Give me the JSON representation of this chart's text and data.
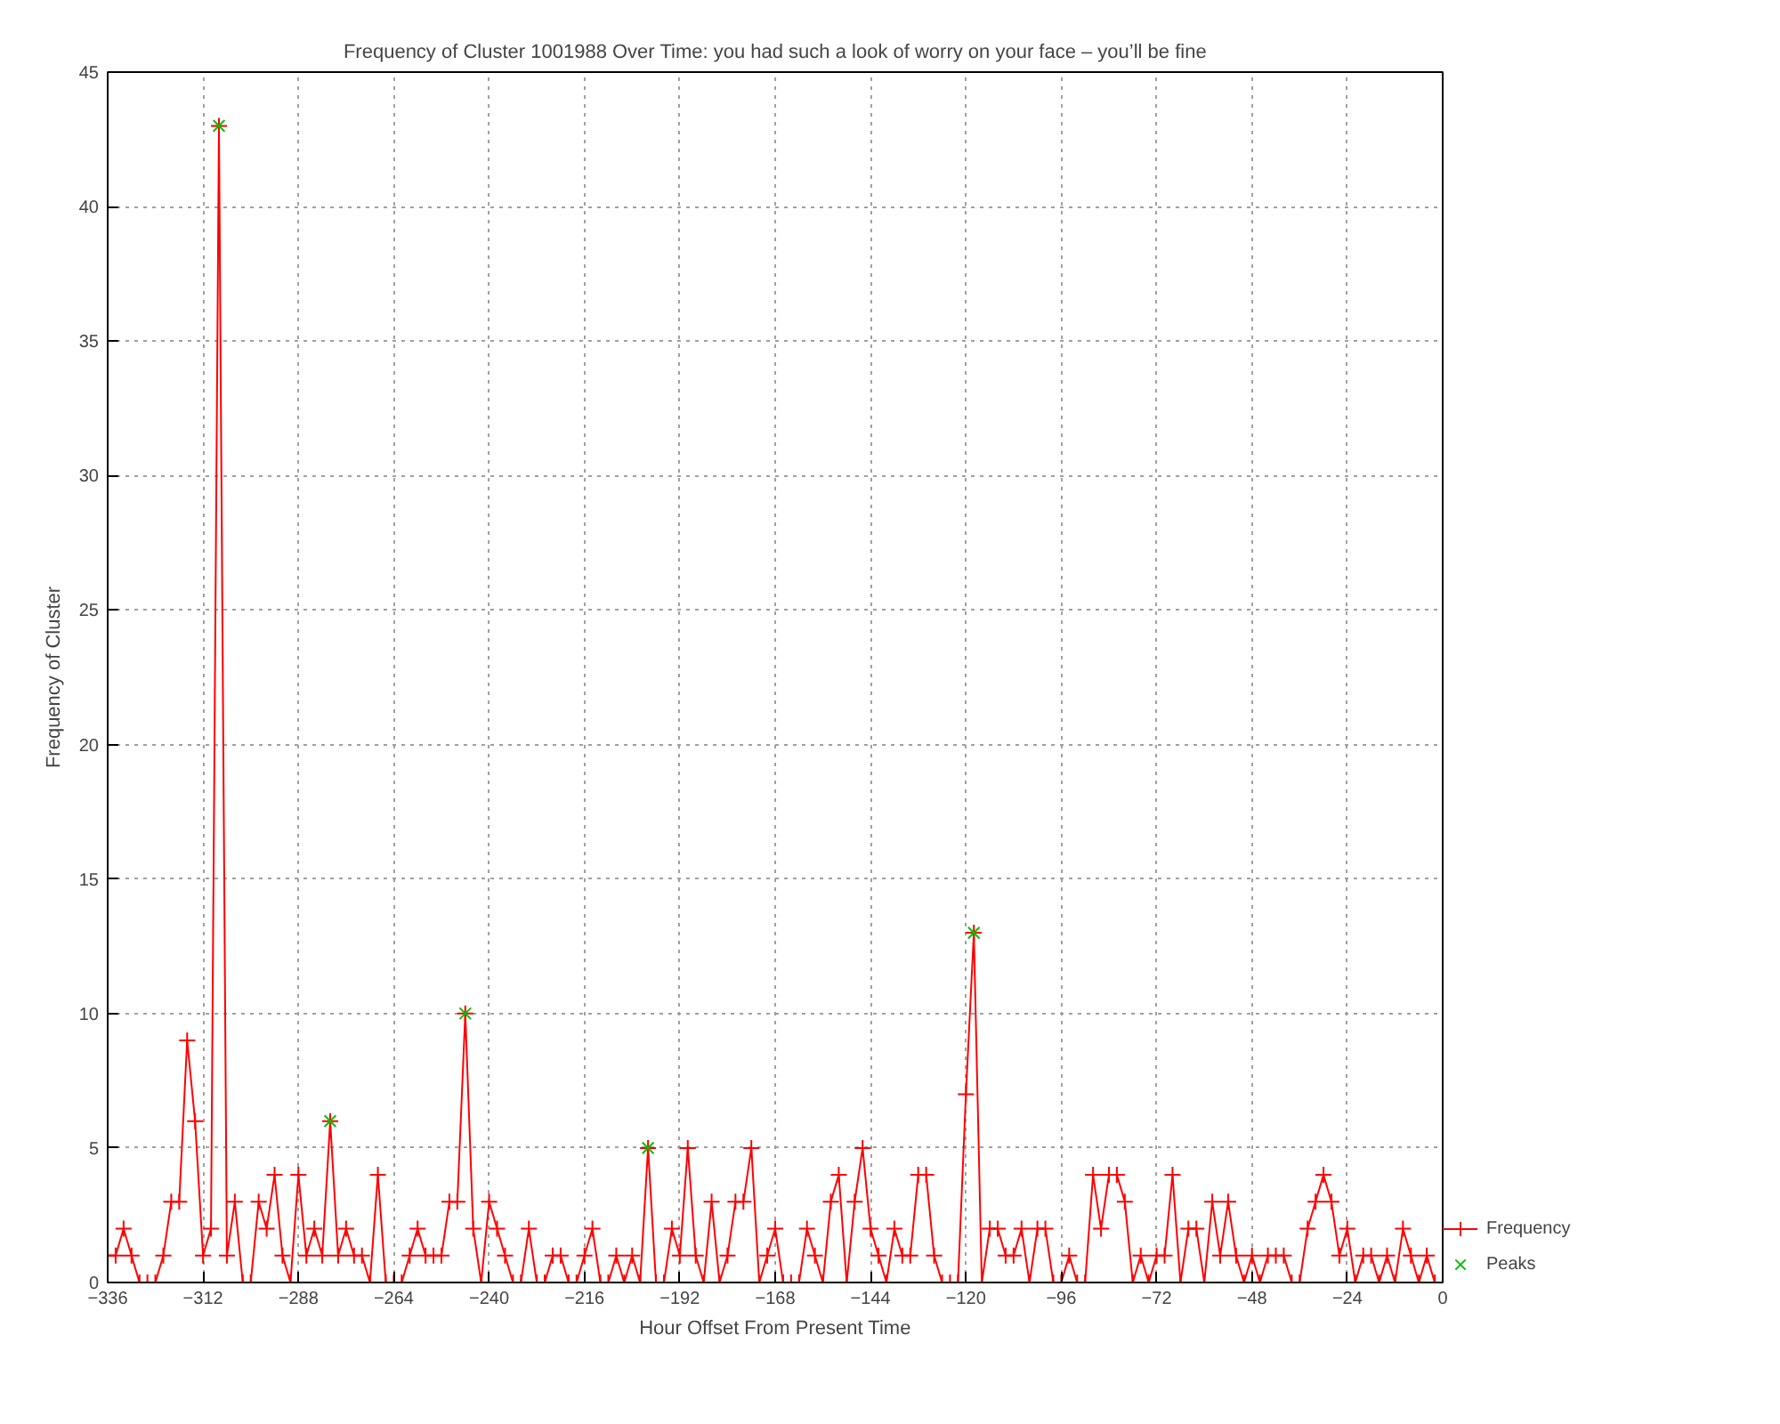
{
  "chart_data": {
    "type": "line",
    "title": "Frequency of Cluster 1001988 Over Time: you had such a look of worry on your face – you’ll be fine",
    "xlabel": "Hour Offset From Present Time",
    "ylabel": "Frequency of Cluster",
    "xlim": [
      -336,
      0
    ],
    "xticks": [
      -336,
      -312,
      -288,
      -264,
      -240,
      -216,
      -192,
      -168,
      -144,
      -120,
      -96,
      -72,
      -48,
      -24,
      0
    ],
    "ylim": [
      0,
      45
    ],
    "yticks": [
      0,
      5,
      10,
      15,
      20,
      25,
      30,
      35,
      40,
      45
    ],
    "grid": true,
    "legend": "bottom right",
    "line_style": "solid",
    "series": [
      {
        "name": "Frequency",
        "color": "#ff0000",
        "marker": "cross",
        "x": [
          -336,
          -334,
          -332,
          -330,
          -328,
          -326,
          -324,
          -322,
          -320,
          -318,
          -316,
          -314,
          -312,
          -310,
          -308,
          -306,
          -304,
          -302,
          -300,
          -298,
          -296,
          -294,
          -292,
          -290,
          -288,
          -286,
          -284,
          -282,
          -280,
          -278,
          -276,
          -274,
          -272,
          -270,
          -268,
          -266,
          -264,
          -262,
          -260,
          -258,
          -256,
          -254,
          -252,
          -250,
          -248,
          -246,
          -244,
          -242,
          -240,
          -238,
          -236,
          -234,
          -232,
          -230,
          -228,
          -226,
          -224,
          -222,
          -220,
          -218,
          -216,
          -214,
          -212,
          -210,
          -208,
          -206,
          -204,
          -202,
          -200,
          -198,
          -196,
          -194,
          -192,
          -190,
          -188,
          -186,
          -184,
          -182,
          -180,
          -178,
          -176,
          -174,
          -172,
          -170,
          -168,
          -166,
          -164,
          -162,
          -160,
          -158,
          -156,
          -154,
          -152,
          -150,
          -148,
          -146,
          -144,
          -142,
          -140,
          -138,
          -136,
          -134,
          -132,
          -130,
          -128,
          -126,
          -124,
          -122,
          -120,
          -118,
          -116,
          -114,
          -112,
          -110,
          -108,
          -106,
          -104,
          -102,
          -100,
          -98,
          -96,
          -94,
          -92,
          -90,
          -88,
          -86,
          -84,
          -82,
          -80,
          -78,
          -76,
          -74,
          -72,
          -70,
          -68,
          -66,
          -64,
          -62,
          -60,
          -58,
          -56,
          -54,
          -52,
          -50,
          -48,
          -46,
          -44,
          -42,
          -40,
          -38,
          -36,
          -34,
          -32,
          -30,
          -28,
          -26,
          -24,
          -22,
          -20,
          -18,
          -16,
          -14,
          -12,
          -10,
          -8,
          -6,
          -4,
          -2
        ],
        "values": [
          1,
          1,
          2,
          1,
          0,
          0,
          0,
          1,
          3,
          3,
          9,
          6,
          1,
          2,
          43,
          1,
          3,
          0,
          0,
          3,
          2,
          4,
          1,
          0,
          4,
          1,
          2,
          1,
          6,
          1,
          2,
          1,
          1,
          0,
          4,
          0,
          0,
          0,
          1,
          2,
          1,
          1,
          1,
          3,
          3,
          10,
          2,
          0,
          3,
          2,
          1,
          0,
          0,
          2,
          0,
          0,
          1,
          1,
          0,
          0,
          1,
          2,
          0,
          0,
          1,
          0,
          1,
          0,
          5,
          0,
          0,
          2,
          1,
          5,
          1,
          0,
          3,
          0,
          1,
          3,
          3,
          5,
          0,
          1,
          2,
          0,
          0,
          0,
          2,
          1,
          0,
          3,
          4,
          0,
          3,
          5,
          2,
          1,
          0,
          2,
          1,
          1,
          4,
          4,
          1,
          0,
          0,
          0,
          7,
          13,
          0,
          2,
          2,
          1,
          1,
          2,
          0,
          2,
          2,
          0,
          0,
          1,
          0,
          0,
          4,
          2,
          4,
          4,
          3,
          0,
          1,
          0,
          1,
          1,
          4,
          0,
          2,
          2,
          0,
          3,
          1,
          3,
          1,
          0,
          1,
          0,
          1,
          1,
          1,
          0,
          0,
          2,
          3,
          4,
          3,
          1,
          2,
          0,
          1,
          1,
          0,
          1,
          0,
          2,
          1,
          0,
          1,
          0
        ]
      },
      {
        "name": "Peaks",
        "type": "scatter",
        "color": "#00c000",
        "marker": "x",
        "x": [
          -308,
          -280,
          -246,
          -200,
          -118
        ],
        "values": [
          43,
          6,
          10,
          5,
          13
        ]
      }
    ]
  }
}
